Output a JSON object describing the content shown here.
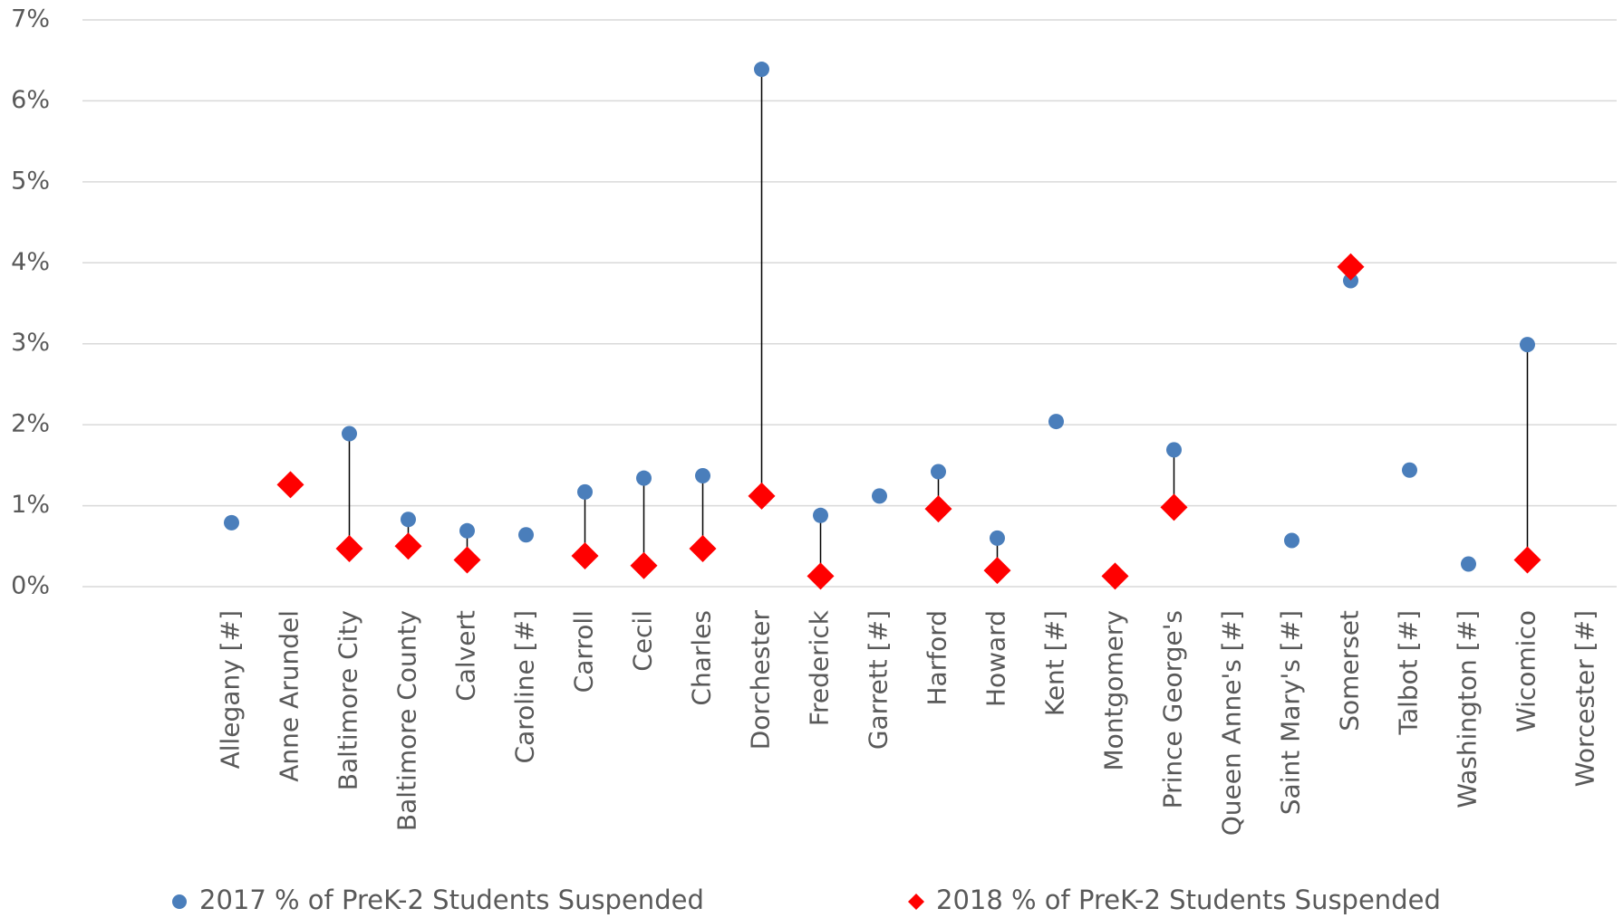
{
  "chart_data": {
    "type": "dumbbell",
    "categories": [
      "Allegany [#]",
      "Anne Arundel",
      "Baltimore City",
      "Baltimore County",
      "Calvert",
      "Caroline [#]",
      "Carroll",
      "Cecil",
      "Charles",
      "Dorchester",
      "Frederick",
      "Garrett [#]",
      "Harford",
      "Howard",
      "Kent [#]",
      "Montgomery",
      "Prince George's",
      "Queen Anne's [#]",
      "Saint Mary's [#]",
      "Somerset",
      "Talbot [#]",
      "Washington [#]",
      "Wicomico",
      "Worcester [#]"
    ],
    "series": [
      {
        "name": "2017 % of PreK-2 Students Suspended",
        "color": "#4a7ebb",
        "marker": "circle",
        "values": [
          0.79,
          null,
          1.89,
          0.83,
          0.69,
          0.64,
          1.17,
          1.34,
          1.37,
          6.39,
          0.88,
          1.12,
          1.42,
          0.6,
          2.04,
          null,
          1.69,
          null,
          0.57,
          3.78,
          1.44,
          0.28,
          2.99,
          null
        ]
      },
      {
        "name": "2018 % of PreK-2 Students Suspended",
        "color": "#ff0000",
        "marker": "diamond",
        "values": [
          null,
          1.26,
          0.47,
          0.5,
          0.33,
          null,
          0.38,
          0.26,
          0.47,
          1.12,
          0.13,
          null,
          0.96,
          0.2,
          null,
          0.13,
          0.98,
          null,
          null,
          3.95,
          null,
          null,
          0.33,
          null
        ]
      }
    ],
    "ylim": [
      0,
      7
    ],
    "yticks": [
      {
        "value": 0,
        "label": "0%"
      },
      {
        "value": 1,
        "label": "1%"
      },
      {
        "value": 2,
        "label": "2%"
      },
      {
        "value": 3,
        "label": "3%"
      },
      {
        "value": 4,
        "label": "4%"
      },
      {
        "value": 5,
        "label": "5%"
      },
      {
        "value": 6,
        "label": "6%"
      },
      {
        "value": 7,
        "label": "7%"
      }
    ],
    "grid": true,
    "legend": "bottom",
    "connector_color": "#000000"
  }
}
